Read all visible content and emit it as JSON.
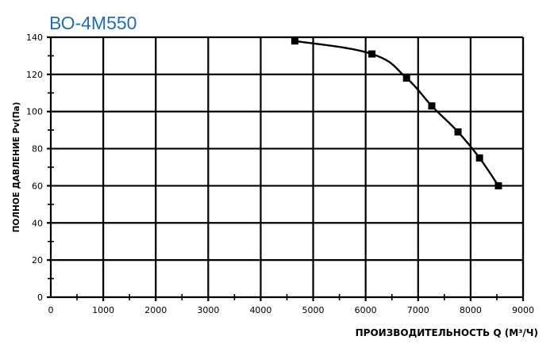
{
  "chart_data": {
    "type": "line",
    "title": "ВО-4М550",
    "xlabel": "ПРОИЗВОДИТЕЛЬНОСТЬ  Q  (М³/Ч)",
    "ylabel": "ПОЛНОЕ ДАВЛЕНИЕ  Pv(Па)",
    "xlim": [
      0,
      9000
    ],
    "ylim": [
      0,
      140
    ],
    "xticks": [
      0,
      1000,
      2000,
      3000,
      4000,
      5000,
      6000,
      7000,
      8000,
      9000
    ],
    "yticks": [
      0,
      20,
      40,
      60,
      80,
      100,
      120,
      140
    ],
    "grid": true,
    "marker": "square",
    "colors": {
      "title": "#1f6db6",
      "line": "#000000",
      "grid": "#000000"
    },
    "x": [
      4650,
      6120,
      6780,
      7260,
      7760,
      8170,
      8530
    ],
    "y": [
      138,
      131,
      118,
      103,
      89,
      75,
      60
    ]
  }
}
